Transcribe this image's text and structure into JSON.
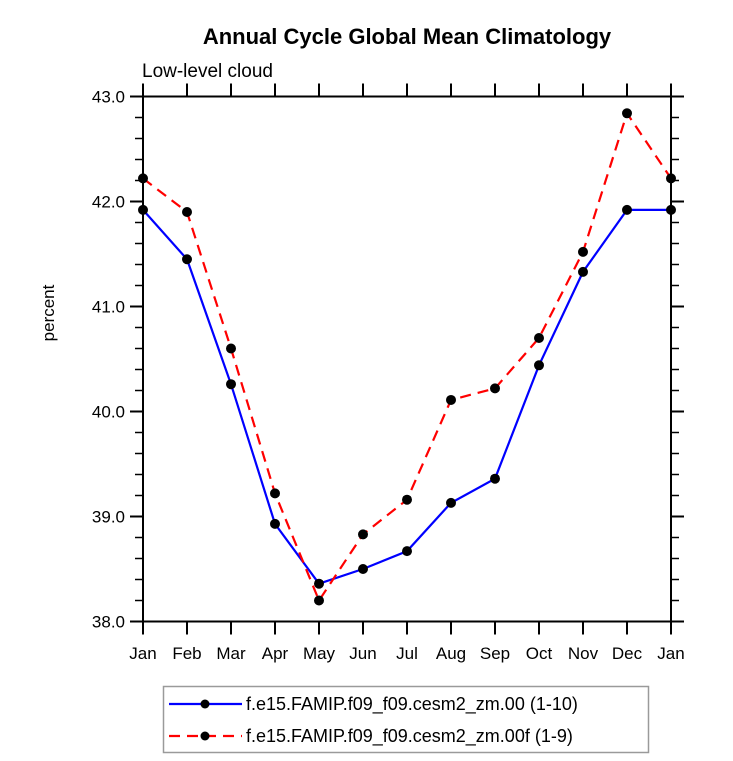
{
  "chart_data": {
    "type": "line",
    "title": "Annual Cycle Global Mean Climatology",
    "subtitle": "Low-level cloud",
    "ylabel": "percent",
    "xlabel": "",
    "ylim": [
      38.0,
      43.0
    ],
    "ytick_interval": 1.0,
    "ytick_minor_interval": 0.2,
    "ytick_label_format": "one-decimal",
    "grid": false,
    "legend_position": "bottom-center",
    "categories": [
      "Jan",
      "Feb",
      "Mar",
      "Apr",
      "May",
      "Jun",
      "Jul",
      "Aug",
      "Sep",
      "Oct",
      "Nov",
      "Dec",
      "Jan"
    ],
    "series": [
      {
        "name": "f.e15.FAMIP.f09_f09.cesm2_zm.00 (1-10)",
        "color": "#0000ff",
        "line_style": "solid",
        "marker": "filled-circle",
        "marker_color": "#000000",
        "values": [
          41.92,
          41.45,
          40.26,
          38.93,
          38.36,
          38.5,
          38.67,
          39.13,
          39.36,
          40.44,
          41.33,
          41.92,
          41.92
        ]
      },
      {
        "name": "f.e15.FAMIP.f09_f09.cesm2_zm.00f (1-9)",
        "color": "#ff0000",
        "line_style": "dashed",
        "dash": "11,7",
        "marker": "filled-circle",
        "marker_color": "#000000",
        "values": [
          42.22,
          41.9,
          40.6,
          39.22,
          38.2,
          38.83,
          39.16,
          40.11,
          40.22,
          40.7,
          41.52,
          42.84,
          42.22
        ]
      }
    ]
  }
}
